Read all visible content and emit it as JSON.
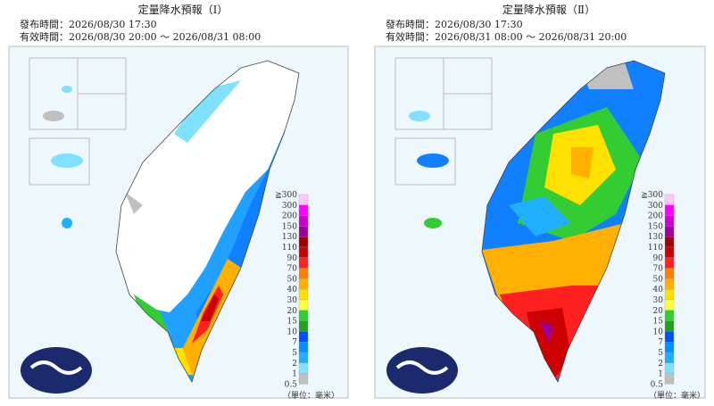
{
  "panels": [
    {
      "title": "定量降水預報（Ⅰ）",
      "issued": "發布時間：2026/08/30 17:30",
      "valid": "有效時間：2026/08/30 20:00 ～ 2026/08/31 08:00"
    },
    {
      "title": "定量降水預報（Ⅱ）",
      "issued": "發布時間：2026/08/30 17:30",
      "valid": "有效時間：2026/08/31 08:00 ～ 2026/08/31 20:00"
    }
  ],
  "legend": {
    "labels": [
      "≧300",
      "300",
      "200",
      "150",
      "130",
      "110",
      "90",
      "70",
      "50",
      "40",
      "30",
      "20",
      "15",
      "10",
      "7",
      "5",
      "2",
      "1",
      "0.5"
    ],
    "colors": [
      "#fcc8fc",
      "#ff00ff",
      "#cc00cc",
      "#990099",
      "#a00000",
      "#cc0000",
      "#ff2020",
      "#ff8000",
      "#ffb000",
      "#ffe000",
      "#ffff40",
      "#33cc33",
      "#22a022",
      "#0050ff",
      "#0090ff",
      "#20b0ff",
      "#80e0ff",
      "#c0c0c0"
    ],
    "unit": "（單位：毫米）"
  }
}
